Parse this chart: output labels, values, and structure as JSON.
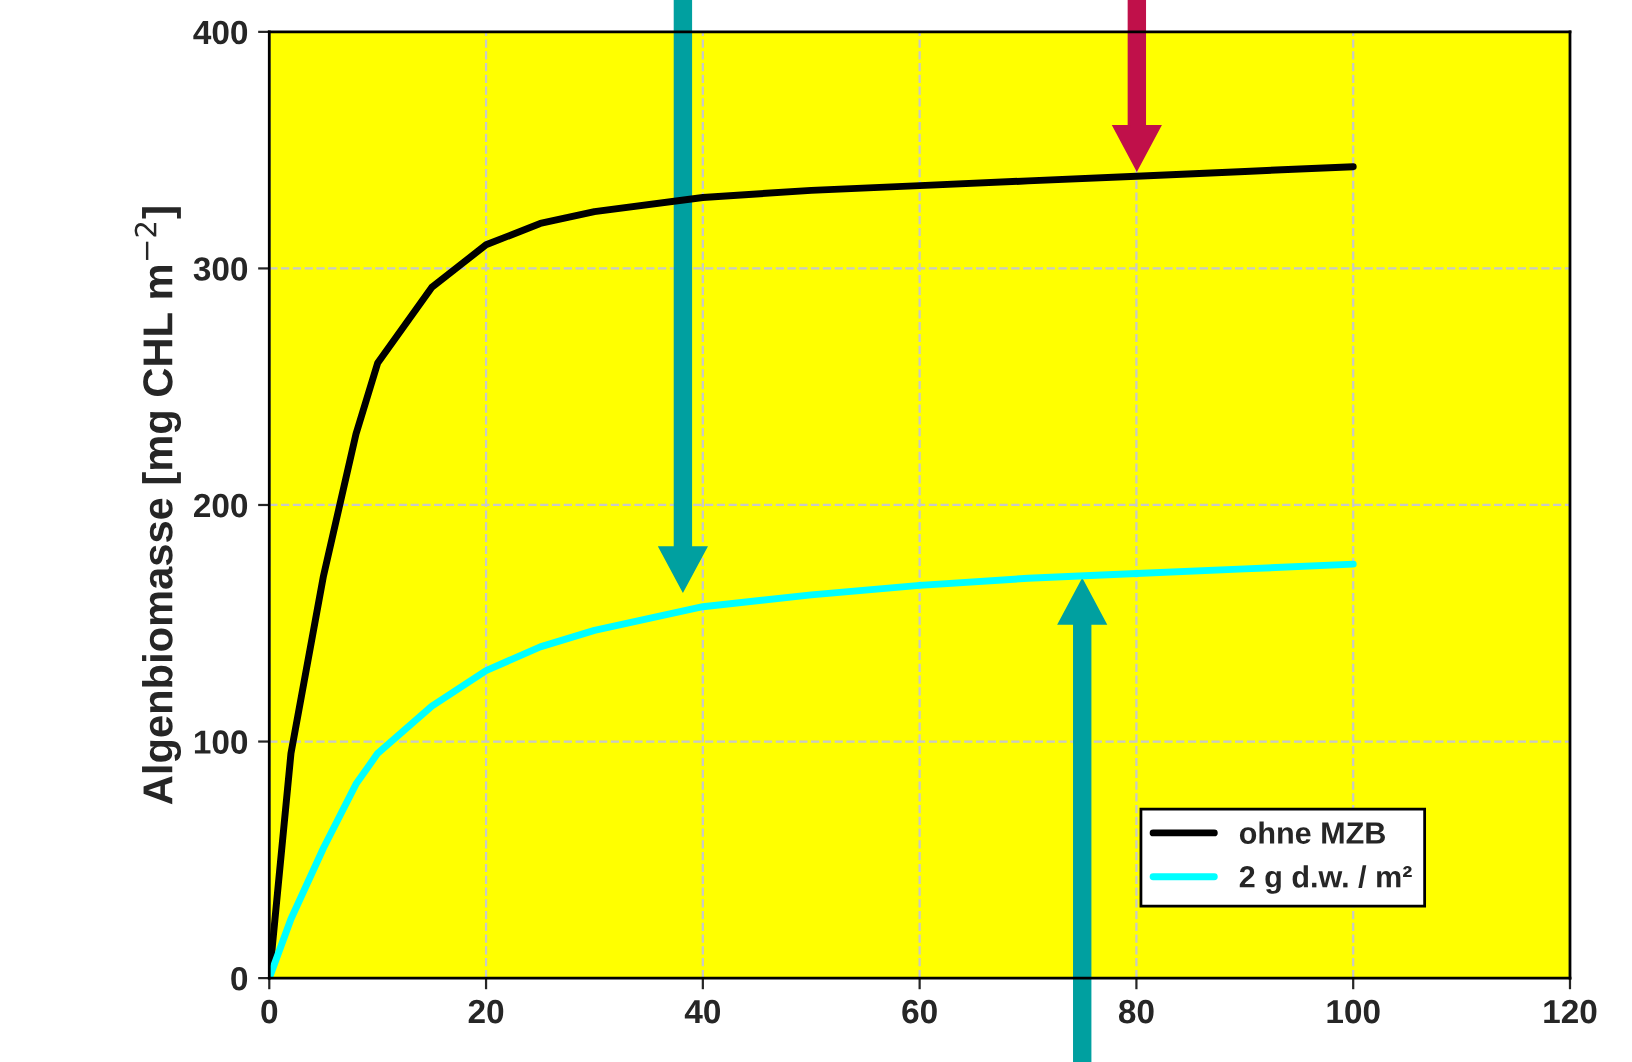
{
  "chart_data": {
    "type": "line",
    "ylabel": "Algenbiomasse [mg CHL m$^{−2}$]",
    "xlim": [
      0,
      120
    ],
    "xticks": [
      0,
      20,
      40,
      60,
      80,
      100,
      120
    ],
    "ylim": [
      0,
      400
    ],
    "yticks": [
      0,
      100,
      200,
      300,
      400
    ],
    "grid": true,
    "legend": "bottom right",
    "marker": "none",
    "line_style": "solid",
    "series": [
      {
        "name": "ohne MZB",
        "color": "#000000",
        "x": [
          0,
          2,
          5,
          8,
          10,
          15,
          20,
          25,
          30,
          40,
          50,
          60,
          70,
          80,
          90,
          100
        ],
        "values": [
          0,
          95,
          170,
          230,
          260,
          292,
          310,
          319,
          324,
          330,
          333,
          335,
          337,
          339,
          341,
          343
        ]
      },
      {
        "name": "2 g d.w. / m²",
        "color": "#00ffff",
        "x": [
          0,
          2,
          5,
          8,
          10,
          15,
          20,
          25,
          30,
          40,
          50,
          60,
          70,
          80,
          90,
          100
        ],
        "values": [
          0,
          25,
          55,
          82,
          95,
          115,
          130,
          140,
          147,
          157,
          162,
          166,
          169,
          171,
          173,
          175
        ]
      }
    ]
  }
}
